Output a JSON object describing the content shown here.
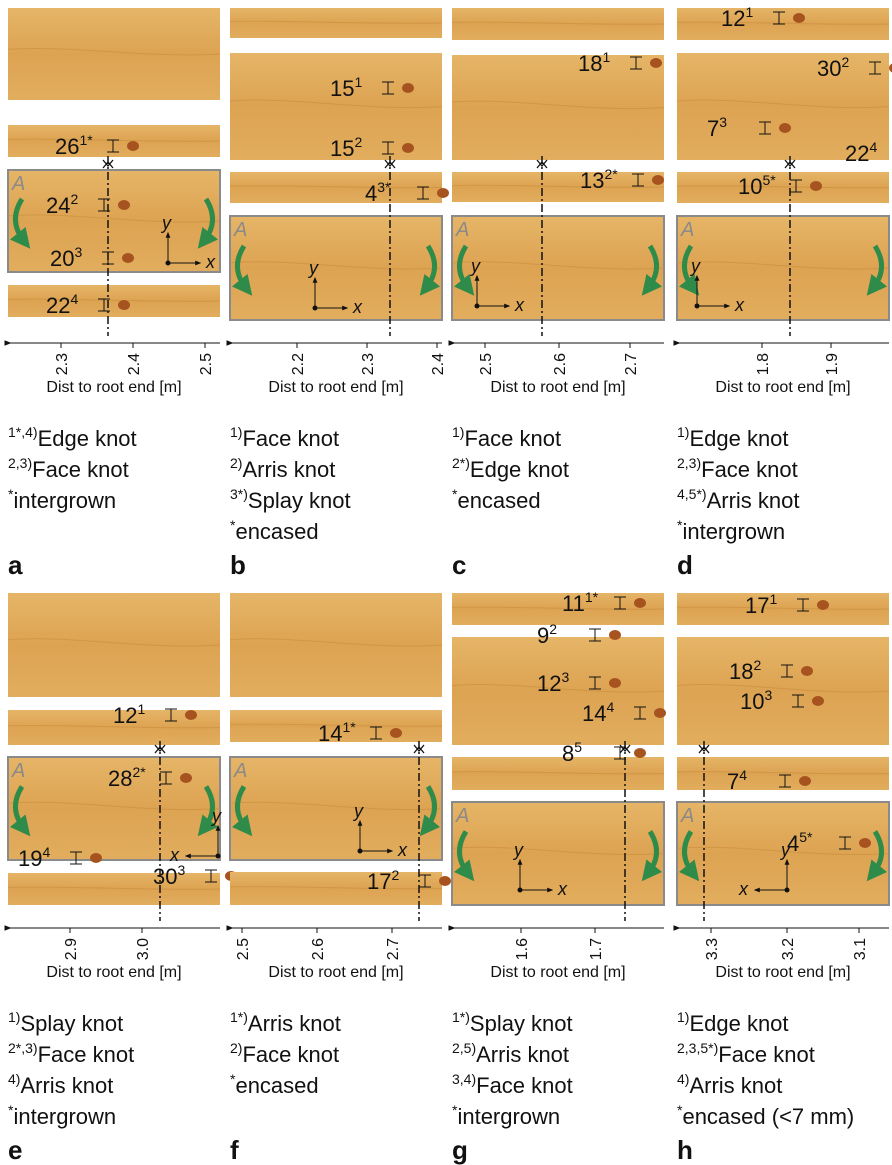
{
  "panels": [
    {
      "letter": "a",
      "face_label": "A",
      "x_label": "x",
      "y_label": "y",
      "ticks": [
        "2.3",
        "2.4",
        "2.5"
      ],
      "axis_label": "Dist to root end [m]",
      "knots": [
        {
          "size": "26",
          "sup": "1*"
        },
        {
          "size": "24",
          "sup": "2"
        },
        {
          "size": "20",
          "sup": "3"
        },
        {
          "size": "22",
          "sup": "4"
        }
      ],
      "notes": [
        {
          "sup": "1*,4)",
          "text": "Edge knot"
        },
        {
          "sup": "2,3)",
          "text": "Face knot"
        },
        {
          "sup": "*",
          "text": "intergrown"
        }
      ]
    },
    {
      "letter": "b",
      "face_label": "A",
      "x_label": "x",
      "y_label": "y",
      "ticks": [
        "2.2",
        "2.3",
        "2.4"
      ],
      "axis_label": "Dist to root end [m]",
      "knots": [
        {
          "size": "15",
          "sup": "1"
        },
        {
          "size": "15",
          "sup": "2"
        },
        {
          "size": "4",
          "sup": "3*"
        }
      ],
      "notes": [
        {
          "sup": "1)",
          "text": "Face knot"
        },
        {
          "sup": "2)",
          "text": "Arris knot"
        },
        {
          "sup": "3*)",
          "text": "Splay knot"
        },
        {
          "sup": "*",
          "text": "encased"
        }
      ]
    },
    {
      "letter": "c",
      "face_label": "A",
      "x_label": "x",
      "y_label": "y",
      "ticks": [
        "2.5",
        "2.6",
        "2.7"
      ],
      "axis_label": "Dist to root end [m]",
      "knots": [
        {
          "size": "18",
          "sup": "1"
        },
        {
          "size": "13",
          "sup": "2*"
        }
      ],
      "notes": [
        {
          "sup": "1)",
          "text": "Face knot"
        },
        {
          "sup": "2*)",
          "text": "Edge knot"
        },
        {
          "sup": "*",
          "text": "encased"
        }
      ]
    },
    {
      "letter": "d",
      "face_label": "A",
      "x_label": "x",
      "y_label": "y",
      "ticks": [
        "1.8",
        "1.9"
      ],
      "axis_label": "Dist to root end [m]",
      "knots": [
        {
          "size": "12",
          "sup": "1"
        },
        {
          "size": "30",
          "sup": "2"
        },
        {
          "size": "7",
          "sup": "3"
        },
        {
          "size": "22",
          "sup": "4"
        },
        {
          "size": "10",
          "sup": "5*"
        }
      ],
      "notes": [
        {
          "sup": "1)",
          "text": "Edge knot"
        },
        {
          "sup": "2,3)",
          "text": "Face knot"
        },
        {
          "sup": "4,5*)",
          "text": "Arris knot"
        },
        {
          "sup": "*",
          "text": "intergrown"
        }
      ]
    },
    {
      "letter": "e",
      "face_label": "A",
      "x_label": "x",
      "y_label": "y",
      "ticks": [
        "2.9",
        "3.0"
      ],
      "axis_label": "Dist to root end [m]",
      "knots": [
        {
          "size": "12",
          "sup": "1"
        },
        {
          "size": "28",
          "sup": "2*"
        },
        {
          "size": "19",
          "sup": "4"
        },
        {
          "size": "30",
          "sup": "3"
        }
      ],
      "notes": [
        {
          "sup": "1)",
          "text": "Splay knot"
        },
        {
          "sup": "2*,3)",
          "text": "Face knot"
        },
        {
          "sup": "4)",
          "text": "Arris knot"
        },
        {
          "sup": "*",
          "text": "intergrown"
        }
      ]
    },
    {
      "letter": "f",
      "face_label": "A",
      "x_label": "x",
      "y_label": "y",
      "ticks": [
        "2.5",
        "2.6",
        "2.7"
      ],
      "axis_label": "Dist to root end [m]",
      "knots": [
        {
          "size": "14",
          "sup": "1*"
        },
        {
          "size": "17",
          "sup": "2"
        }
      ],
      "notes": [
        {
          "sup": "1*)",
          "text": "Arris knot"
        },
        {
          "sup": "2)",
          "text": "Face knot"
        },
        {
          "sup": "*",
          "text": "encased"
        }
      ]
    },
    {
      "letter": "g",
      "face_label": "A",
      "x_label": "x",
      "y_label": "y",
      "ticks": [
        "1.6",
        "1.7"
      ],
      "axis_label": "Dist to root end [m]",
      "knots": [
        {
          "size": "11",
          "sup": "1*"
        },
        {
          "size": "9",
          "sup": "2"
        },
        {
          "size": "12",
          "sup": "3"
        },
        {
          "size": "14",
          "sup": "4"
        },
        {
          "size": "8",
          "sup": "5"
        }
      ],
      "notes": [
        {
          "sup": "1*)",
          "text": "Splay knot"
        },
        {
          "sup": "2,5)",
          "text": "Arris knot"
        },
        {
          "sup": "3,4)",
          "text": "Face knot"
        },
        {
          "sup": "*",
          "text": "intergrown"
        }
      ]
    },
    {
      "letter": "h",
      "face_label": "A",
      "x_label": "x",
      "y_label": "y",
      "ticks": [
        "3.3",
        "3.2",
        "3.1"
      ],
      "axis_label": "Dist to root end [m]",
      "knots": [
        {
          "size": "17",
          "sup": "1"
        },
        {
          "size": "18",
          "sup": "2"
        },
        {
          "size": "10",
          "sup": "3"
        },
        {
          "size": "7",
          "sup": "4"
        },
        {
          "size": "4",
          "sup": "5*"
        }
      ],
      "notes": [
        {
          "sup": "1)",
          "text": "Edge knot"
        },
        {
          "sup": "2,3,5*)",
          "text": "Face knot"
        },
        {
          "sup": "4)",
          "text": "Arris knot"
        },
        {
          "sup": "*",
          "text": "encased (<7 mm)"
        }
      ]
    }
  ]
}
